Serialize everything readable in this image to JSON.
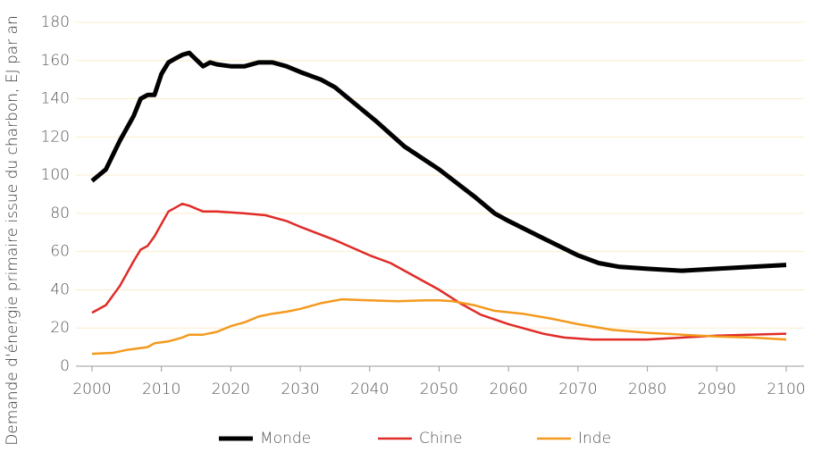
{
  "chart_data": {
    "type": "line",
    "y_label": "Demande d'énergie primaire issue du charbon, EJ par an",
    "xlim": [
      2000,
      2100
    ],
    "xticks": [
      2000,
      2010,
      2020,
      2030,
      2040,
      2050,
      2060,
      2070,
      2080,
      2090,
      2100
    ],
    "ylim": [
      0,
      180
    ],
    "yticks": [
      0,
      20,
      40,
      60,
      80,
      100,
      120,
      140,
      160,
      180
    ],
    "grid": true,
    "legend": "bottom",
    "series": [
      {
        "name": "Monde",
        "color": "#000000",
        "width": 5,
        "x": [
          2000,
          2002,
          2004,
          2006,
          2007,
          2008,
          2009,
          2010,
          2011,
          2012,
          2013,
          2014,
          2016,
          2017,
          2018,
          2020,
          2022,
          2024,
          2026,
          2028,
          2030,
          2033,
          2035,
          2038,
          2041,
          2045,
          2050,
          2055,
          2058,
          2060,
          2065,
          2070,
          2073,
          2076,
          2080,
          2085,
          2090,
          2095,
          2100
        ],
        "values": [
          97,
          103,
          118,
          131,
          140,
          142,
          142,
          153,
          159,
          161,
          163,
          164,
          157,
          159,
          158,
          157,
          157,
          159,
          159,
          157,
          154,
          150,
          146,
          137,
          128,
          115,
          103,
          89,
          80,
          76,
          67,
          58,
          54,
          52,
          51,
          50,
          51,
          52,
          53
        ]
      },
      {
        "name": "Chine",
        "color": "#e02b27",
        "width": 2.5,
        "x": [
          2000,
          2002,
          2004,
          2006,
          2007,
          2008,
          2009,
          2011,
          2013,
          2014,
          2016,
          2018,
          2022,
          2025,
          2028,
          2030,
          2035,
          2040,
          2043,
          2047,
          2050,
          2053,
          2056,
          2060,
          2065,
          2068,
          2072,
          2080,
          2090,
          2100
        ],
        "values": [
          28,
          32,
          42,
          55,
          61,
          63,
          68,
          81,
          85,
          84,
          81,
          81,
          80,
          79,
          76,
          73,
          66,
          58,
          54,
          46,
          40,
          33,
          27,
          22,
          17,
          15,
          14,
          14,
          16,
          17
        ]
      },
      {
        "name": "Inde",
        "color": "#f39a1e",
        "width": 2.5,
        "x": [
          2000,
          2003,
          2005,
          2008,
          2009,
          2011,
          2013,
          2014,
          2016,
          2018,
          2020,
          2022,
          2024,
          2026,
          2028,
          2030,
          2033,
          2036,
          2040,
          2044,
          2048,
          2050,
          2052,
          2055,
          2058,
          2062,
          2066,
          2070,
          2075,
          2080,
          2085,
          2090,
          2095,
          2100
        ],
        "values": [
          6.5,
          7,
          8.5,
          10,
          12,
          13,
          15,
          16.5,
          16.5,
          18,
          21,
          23,
          26,
          27.5,
          28.5,
          30,
          33,
          35,
          34.5,
          34,
          34.5,
          34.5,
          34,
          32,
          29,
          27.5,
          25,
          22,
          19,
          17.5,
          16.5,
          15.5,
          15,
          14
        ]
      }
    ]
  }
}
